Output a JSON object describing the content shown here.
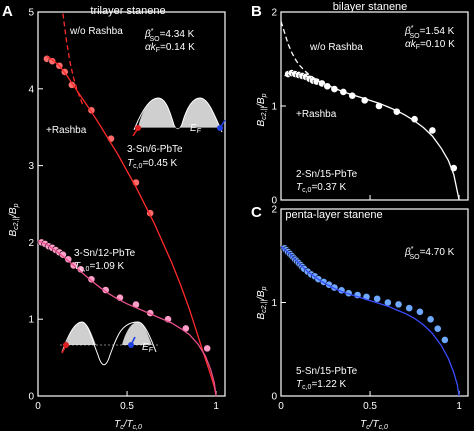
{
  "colors": {
    "background": "#000000",
    "axis": "#ffffff",
    "red_theory": "#ff2a2a",
    "red_points": "#ff6a6a",
    "pink_theory": "#e8508c",
    "pink_points": "#ff9ec8",
    "white_points": "#ffffff",
    "blue_theory": "#3a4cff",
    "blue_points": "#6fa8ff",
    "band_fill": "#cfcfcf",
    "spin_up": "#e02020",
    "spin_down": "#2040e0"
  },
  "chart_data": [
    {
      "id": "A",
      "type": "scatter",
      "panel_label": "A",
      "title": "trilayer stanene",
      "xlabel": "T_c/T_c,0",
      "ylabel": "B_c2,||/B_p",
      "xlim": [
        0,
        1.05
      ],
      "ylim": [
        0,
        5
      ],
      "xticks": [
        0,
        0.5,
        1
      ],
      "xtick_labels": [
        "0",
        "0.5",
        "1"
      ],
      "yticks": [
        0,
        1,
        2,
        3,
        4,
        5
      ],
      "ytick_labels": [
        "0",
        "1",
        "2",
        "3",
        "4",
        "5"
      ],
      "annotations": {
        "wo_rashba": "w/o Rashba",
        "plus_rashba": "+Rashba",
        "beta": "β*SO=4.34 K",
        "alpha": "αkF=0.14 K",
        "sample1": "3-Sn/6-PbTe",
        "sample1_tc": "Tc,0=0.45 K",
        "sample2": "3-Sn/12-PbTe",
        "sample2_tc": "Tc,0=1.09 K",
        "ef": "EF"
      },
      "series": [
        {
          "label": "3-Sn/6-PbTe",
          "style": "points",
          "color_key": "red_points",
          "x": [
            0.05,
            0.08,
            0.12,
            0.15,
            0.19,
            0.3,
            0.41,
            0.55,
            0.63
          ],
          "y": [
            4.39,
            4.36,
            4.3,
            4.22,
            4.05,
            3.72,
            3.35,
            2.78,
            2.38
          ]
        },
        {
          "label": "",
          "style": "solid",
          "color_key": "red_theory",
          "x": [
            0.05,
            0.08,
            0.12,
            0.16,
            0.2,
            0.25,
            0.3,
            0.35,
            0.4,
            0.45,
            0.5,
            0.55,
            0.6,
            0.65,
            0.7,
            0.75,
            0.8,
            0.85,
            0.9,
            0.94,
            0.97,
            0.99,
            1.0
          ],
          "y": [
            4.42,
            4.38,
            4.3,
            4.18,
            4.04,
            3.87,
            3.7,
            3.52,
            3.33,
            3.14,
            2.93,
            2.72,
            2.49,
            2.26,
            2.0,
            1.74,
            1.45,
            1.13,
            0.77,
            0.48,
            0.27,
            0.12,
            0.0
          ]
        },
        {
          "label": "w/o Rashba",
          "style": "dashed",
          "color_key": "red_theory",
          "x": [
            0.14,
            0.15,
            0.16,
            0.17,
            0.18,
            0.2,
            0.22,
            0.25
          ],
          "y": [
            4.98,
            4.8,
            4.62,
            4.48,
            4.34,
            4.14,
            3.98,
            3.8
          ]
        },
        {
          "label": "3-Sn/12-PbTe",
          "style": "points",
          "color_key": "pink_points",
          "x": [
            0.02,
            0.04,
            0.06,
            0.08,
            0.1,
            0.12,
            0.14,
            0.17,
            0.2,
            0.24,
            0.3,
            0.38,
            0.46,
            0.55,
            0.63,
            0.73,
            0.83,
            0.95
          ],
          "y": [
            2.0,
            1.98,
            1.95,
            1.93,
            1.9,
            1.87,
            1.84,
            1.78,
            1.7,
            1.65,
            1.52,
            1.38,
            1.28,
            1.19,
            1.08,
            1.0,
            0.88,
            0.62
          ]
        },
        {
          "label": "",
          "style": "solid",
          "color_key": "pink_theory",
          "x": [
            0.0,
            0.05,
            0.1,
            0.15,
            0.2,
            0.25,
            0.3,
            0.35,
            0.4,
            0.45,
            0.5,
            0.55,
            0.6,
            0.65,
            0.7,
            0.75,
            0.8,
            0.85,
            0.9,
            0.94,
            0.97,
            0.99,
            1.0
          ],
          "y": [
            2.02,
            1.97,
            1.89,
            1.8,
            1.7,
            1.6,
            1.5,
            1.41,
            1.33,
            1.26,
            1.2,
            1.15,
            1.1,
            1.05,
            1.0,
            0.95,
            0.88,
            0.8,
            0.67,
            0.52,
            0.34,
            0.17,
            0.0
          ]
        }
      ]
    },
    {
      "id": "B",
      "type": "scatter",
      "panel_label": "B",
      "title": "bilayer stanene",
      "xlabel": "",
      "ylabel": "B_c2,||/B_p",
      "xlim": [
        0,
        1.05
      ],
      "ylim": [
        0,
        2
      ],
      "xticks": [
        0,
        0.5,
        1
      ],
      "xtick_labels": [
        "",
        "",
        ""
      ],
      "yticks": [
        0,
        1,
        2
      ],
      "ytick_labels": [
        "0",
        "1",
        "2"
      ],
      "annotations": {
        "beta": "β*SO=1.54 K",
        "alpha": "αkF=0.10 K",
        "wo_rashba": "w/o Rashba",
        "plus_rashba": "+Rashba",
        "sample": "2-Sn/15-PbTe",
        "sample_tc": "Tc,0=0.37 K"
      },
      "series": [
        {
          "label": "2-Sn/15-PbTe",
          "style": "points",
          "color_key": "white_points",
          "x": [
            0.04,
            0.06,
            0.08,
            0.1,
            0.12,
            0.14,
            0.16,
            0.18,
            0.2,
            0.23,
            0.26,
            0.3,
            0.35,
            0.4,
            0.47,
            0.55,
            0.65,
            0.75,
            0.85,
            0.97
          ],
          "y": [
            1.34,
            1.35,
            1.34,
            1.33,
            1.32,
            1.31,
            1.29,
            1.27,
            1.26,
            1.24,
            1.21,
            1.18,
            1.15,
            1.11,
            1.06,
            1.0,
            0.94,
            0.86,
            0.74,
            0.34
          ]
        },
        {
          "label": "",
          "style": "solid",
          "color_key": "white_points",
          "x": [
            0.02,
            0.05,
            0.1,
            0.15,
            0.2,
            0.25,
            0.3,
            0.35,
            0.4,
            0.45,
            0.5,
            0.55,
            0.6,
            0.65,
            0.7,
            0.75,
            0.8,
            0.85,
            0.9,
            0.94,
            0.97,
            1.0
          ],
          "y": [
            1.32,
            1.36,
            1.34,
            1.31,
            1.27,
            1.23,
            1.19,
            1.15,
            1.12,
            1.09,
            1.06,
            1.03,
            0.99,
            0.95,
            0.9,
            0.84,
            0.77,
            0.68,
            0.55,
            0.42,
            0.27,
            0.0
          ]
        },
        {
          "label": "w/o Rashba",
          "style": "dashed",
          "color_key": "white_points",
          "x": [
            0.0,
            0.02,
            0.04,
            0.06,
            0.08,
            0.1,
            0.13,
            0.16,
            0.2
          ],
          "y": [
            1.9,
            1.78,
            1.66,
            1.57,
            1.5,
            1.44,
            1.38,
            1.33,
            1.28
          ]
        }
      ]
    },
    {
      "id": "C",
      "type": "scatter",
      "panel_label": "C",
      "title": "penta-layer stanene",
      "xlabel": "T_c/T_c,0",
      "ylabel": "B_c2,||/B_p",
      "xlim": [
        0,
        1.05
      ],
      "ylim": [
        0,
        2
      ],
      "xticks": [
        0,
        0.5,
        1
      ],
      "xtick_labels": [
        "0",
        "0.5",
        "1"
      ],
      "yticks": [
        0,
        1,
        2
      ],
      "ytick_labels": [
        "0",
        "1",
        "2"
      ],
      "annotations": {
        "beta": "β*SO=4.70 K",
        "sample": "5-Sn/15-PbTe",
        "sample_tc": "Tc,0=1.22 K"
      },
      "series": [
        {
          "label": "5-Sn/15-PbTe",
          "style": "points",
          "color_key": "blue_points",
          "x": [
            0.02,
            0.03,
            0.04,
            0.05,
            0.06,
            0.07,
            0.08,
            0.09,
            0.1,
            0.11,
            0.12,
            0.13,
            0.15,
            0.17,
            0.19,
            0.21,
            0.24,
            0.27,
            0.3,
            0.34,
            0.38,
            0.43,
            0.48,
            0.54,
            0.6,
            0.66,
            0.72,
            0.78,
            0.84,
            0.88,
            0.92
          ],
          "y": [
            1.58,
            1.56,
            1.54,
            1.52,
            1.5,
            1.48,
            1.46,
            1.44,
            1.42,
            1.4,
            1.38,
            1.36,
            1.33,
            1.3,
            1.28,
            1.25,
            1.22,
            1.19,
            1.16,
            1.13,
            1.1,
            1.08,
            1.06,
            1.04,
            1.0,
            0.98,
            0.94,
            0.9,
            0.82,
            0.72,
            0.6
          ]
        },
        {
          "label": "",
          "style": "solid",
          "color_key": "blue_theory",
          "x": [
            0.0,
            0.05,
            0.1,
            0.15,
            0.2,
            0.25,
            0.3,
            0.35,
            0.4,
            0.45,
            0.5,
            0.55,
            0.6,
            0.65,
            0.7,
            0.75,
            0.8,
            0.85,
            0.9,
            0.94,
            0.97,
            0.99,
            1.0
          ],
          "y": [
            1.6,
            1.52,
            1.42,
            1.33,
            1.26,
            1.2,
            1.15,
            1.11,
            1.08,
            1.05,
            1.02,
            0.99,
            0.96,
            0.92,
            0.88,
            0.83,
            0.76,
            0.67,
            0.54,
            0.4,
            0.25,
            0.12,
            0.0
          ]
        }
      ]
    }
  ]
}
